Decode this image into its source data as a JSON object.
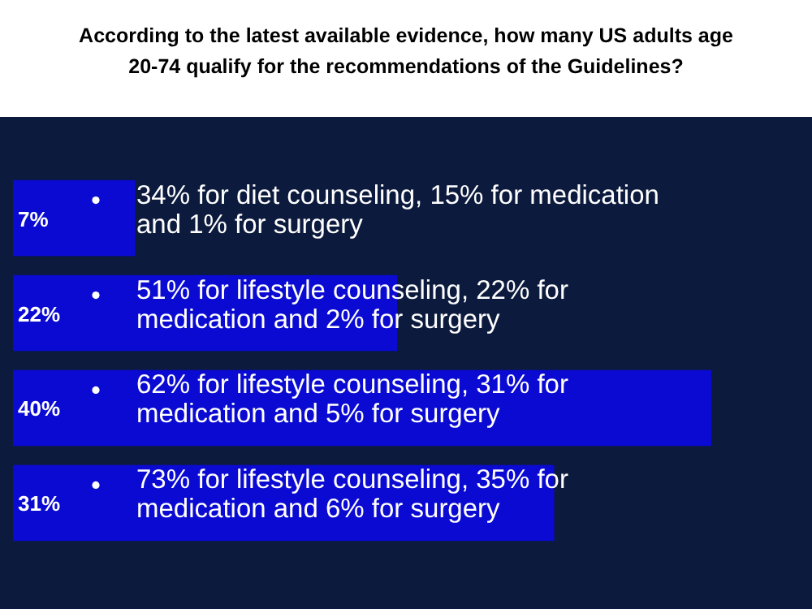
{
  "chart_data": {
    "type": "bar",
    "orientation": "horizontal",
    "title": "According to the latest available evidence, how many US adults age 20-74 qualify for the recommendations of the Guidelines?",
    "categories": [
      "34% for diet counseling, 15% for medication and 1% for surgery",
      "51% for lifestyle counseling, 22% for medication and 2% for surgery",
      "62% for lifestyle counseling, 31% for medication and 5% for surgery",
      "73% for lifestyle counseling, 35% for medication and 6% for surgery"
    ],
    "values": [
      7,
      22,
      40,
      31
    ],
    "value_labels": [
      "7%",
      "22%",
      "40%",
      "31%"
    ],
    "color": "#0a0ad2"
  }
}
